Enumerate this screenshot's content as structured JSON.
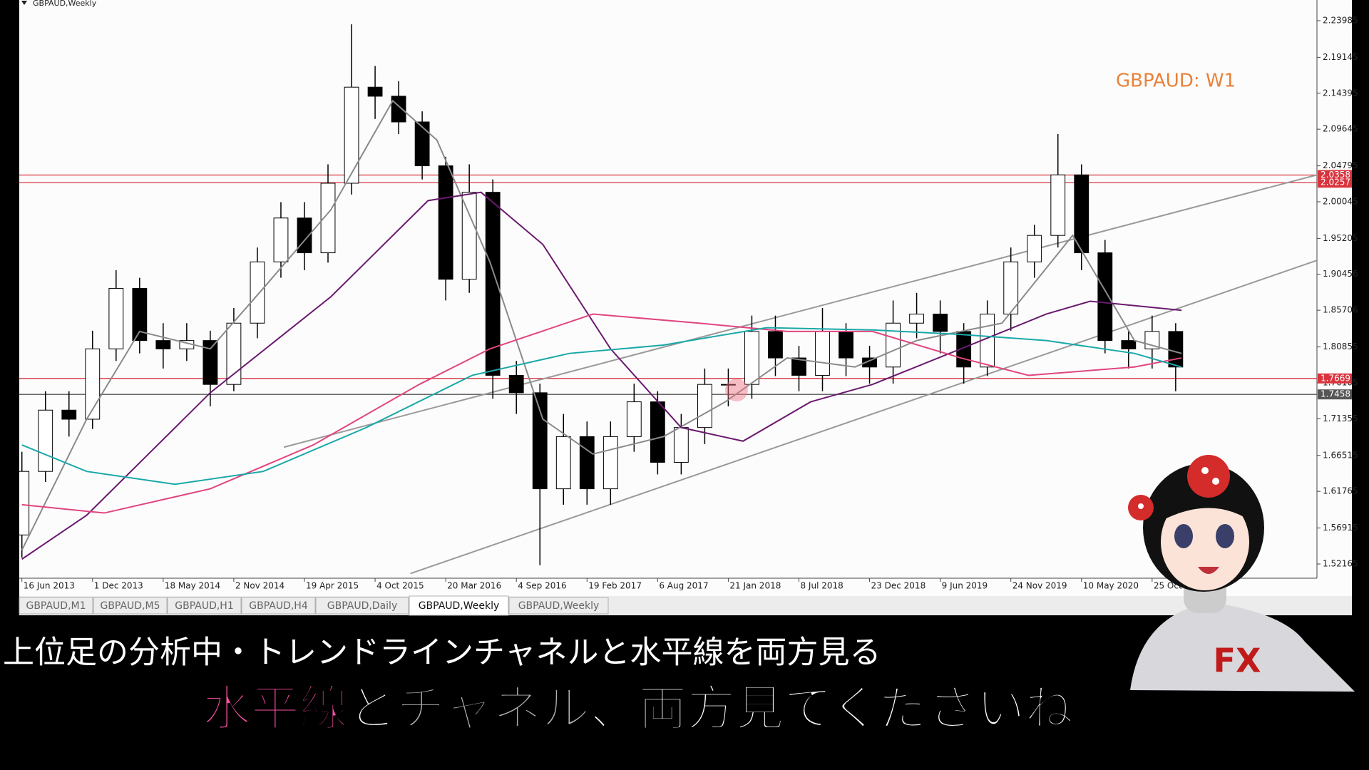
{
  "window_title": "GBPAUD,Weekly",
  "chart_data": {
    "type": "candlestick",
    "title": "GBPAUD: W1",
    "xlim": [
      -0.9,
      440
    ],
    "xticks": [
      {
        "value": 0,
        "label": "16 Jun 2013"
      },
      {
        "value": 24,
        "label": "1 Dec 2013"
      },
      {
        "value": 48,
        "label": "18 May 2014"
      },
      {
        "value": 72,
        "label": "2 Nov 2014"
      },
      {
        "value": 96,
        "label": "19 Apr 2015"
      },
      {
        "value": 120,
        "label": "4 Oct 2015"
      },
      {
        "value": 144,
        "label": "20 Mar 2016"
      },
      {
        "value": 168,
        "label": "4 Sep 2016"
      },
      {
        "value": 192,
        "label": "19 Feb 2017"
      },
      {
        "value": 216,
        "label": "6 Aug 2017"
      },
      {
        "value": 240,
        "label": "21 Jan 2018"
      },
      {
        "value": 264,
        "label": "8 Jul 2018"
      },
      {
        "value": 288,
        "label": "23 Dec 2018"
      },
      {
        "value": 312,
        "label": "9 Jun 2019"
      },
      {
        "value": 336,
        "label": "24 Nov 2019"
      },
      {
        "value": 360,
        "label": "10 May 2020"
      },
      {
        "value": 384,
        "label": "25 Oct 2020"
      }
    ],
    "ylim": [
      1.5028,
      2.2672
    ],
    "yticks": [
      2.23985,
      2.19145,
      2.14395,
      2.09645,
      2.04795,
      2.00045,
      1.95205,
      1.90456,
      1.85706,
      1.80855,
      1.76105,
      1.71355,
      1.66515,
      1.61765,
      1.56915,
      1.52165
    ],
    "candles": {
      "up_color": "#ffffff",
      "down_color": "#000000",
      "x": [
        0,
        8,
        16,
        24,
        32,
        40,
        48,
        56,
        64,
        72,
        80,
        88,
        96,
        104,
        112,
        120,
        128,
        136,
        144,
        152,
        160,
        168,
        176,
        184,
        192,
        200,
        208,
        216,
        224,
        232,
        240,
        248,
        256,
        264,
        272,
        280,
        288,
        296,
        304,
        312,
        320,
        328,
        336,
        344,
        352,
        360,
        368,
        376,
        384,
        392
      ],
      "open": [
        1.56,
        1.644,
        1.725,
        1.713,
        1.806,
        1.886,
        1.817,
        1.806,
        1.817,
        1.759,
        1.84,
        1.921,
        1.979,
        1.933,
        2.025,
        2.152,
        2.14,
        2.106,
        2.048,
        1.898,
        2.013,
        1.771,
        1.748,
        1.621,
        1.69,
        1.621,
        1.69,
        1.736,
        1.656,
        1.702,
        1.759,
        1.759,
        1.829,
        1.794,
        1.771,
        1.829,
        1.794,
        1.782,
        1.84,
        1.852,
        1.829,
        1.782,
        1.852,
        1.921,
        1.956,
        2.036,
        1.933,
        1.817,
        1.806,
        1.829
      ],
      "high": [
        1.67,
        1.75,
        1.75,
        1.83,
        1.91,
        1.9,
        1.84,
        1.84,
        1.83,
        1.86,
        1.94,
        2.0,
        2.0,
        2.05,
        2.235,
        2.18,
        2.16,
        2.12,
        2.06,
        2.05,
        2.03,
        1.79,
        1.76,
        1.72,
        1.71,
        1.71,
        1.76,
        1.75,
        1.72,
        1.78,
        1.78,
        1.85,
        1.85,
        1.81,
        1.86,
        1.84,
        1.81,
        1.87,
        1.88,
        1.87,
        1.84,
        1.87,
        1.94,
        1.97,
        2.09,
        2.05,
        1.95,
        1.83,
        1.85,
        1.84
      ],
      "low": [
        1.53,
        1.63,
        1.69,
        1.7,
        1.79,
        1.8,
        1.78,
        1.79,
        1.73,
        1.75,
        1.82,
        1.9,
        1.91,
        1.92,
        2.01,
        2.11,
        2.09,
        2.03,
        1.87,
        1.88,
        1.74,
        1.72,
        1.52,
        1.6,
        1.6,
        1.6,
        1.67,
        1.64,
        1.64,
        1.68,
        1.73,
        1.74,
        1.77,
        1.75,
        1.75,
        1.77,
        1.76,
        1.76,
        1.82,
        1.8,
        1.76,
        1.77,
        1.83,
        1.9,
        1.94,
        1.91,
        1.8,
        1.78,
        1.78,
        1.75
      ],
      "close": [
        1.644,
        1.725,
        1.713,
        1.806,
        1.886,
        1.817,
        1.806,
        1.817,
        1.759,
        1.84,
        1.921,
        1.979,
        1.933,
        2.025,
        2.152,
        2.14,
        2.106,
        2.048,
        1.898,
        2.013,
        1.771,
        1.748,
        1.621,
        1.69,
        1.621,
        1.69,
        1.736,
        1.656,
        1.702,
        1.759,
        1.759,
        1.829,
        1.794,
        1.771,
        1.829,
        1.794,
        1.782,
        1.84,
        1.852,
        1.829,
        1.782,
        1.852,
        1.921,
        1.956,
        2.036,
        1.933,
        1.817,
        1.806,
        1.829,
        1.782
      ]
    },
    "series": [
      {
        "color": "#8a8a8a",
        "x": [
          0,
          22,
          40,
          64,
          82,
          105,
          126,
          141,
          159,
          177,
          194,
          218,
          239,
          260,
          283,
          304,
          319,
          333,
          357,
          378,
          394
        ],
        "values": [
          1.54,
          1.713,
          1.829,
          1.806,
          1.886,
          1.99,
          2.134,
          2.082,
          1.921,
          1.713,
          1.667,
          1.69,
          1.736,
          1.794,
          1.782,
          1.817,
          1.829,
          1.84,
          1.956,
          1.817,
          1.8
        ]
      },
      {
        "color": "#6a1a6e",
        "x": [
          0,
          22,
          64,
          105,
          138,
          156,
          177,
          200,
          224,
          245,
          268,
          289,
          319,
          348,
          363,
          394
        ],
        "values": [
          1.528,
          1.586,
          1.748,
          1.875,
          2.002,
          2.013,
          1.944,
          1.806,
          1.702,
          1.684,
          1.736,
          1.759,
          1.806,
          1.852,
          1.869,
          1.857
        ]
      },
      {
        "color": "#e0457f",
        "x": [
          0,
          28,
          64,
          99,
          135,
          159,
          194,
          230,
          260,
          289,
          319,
          342,
          378,
          394
        ],
        "values": [
          1.6,
          1.589,
          1.621,
          1.679,
          1.759,
          1.806,
          1.852,
          1.84,
          1.829,
          1.829,
          1.794,
          1.771,
          1.782,
          1.794
        ]
      },
      {
        "color": "#1aa8a8",
        "x": [
          0,
          22,
          52,
          82,
          117,
          153,
          186,
          218,
          253,
          289,
          319,
          348,
          378,
          394
        ],
        "values": [
          1.679,
          1.644,
          1.627,
          1.644,
          1.702,
          1.771,
          1.8,
          1.811,
          1.834,
          1.831,
          1.825,
          1.817,
          1.8,
          1.782
        ]
      }
    ],
    "trendlines": [
      {
        "color": "#9a9a9a",
        "x": [
          132,
          440
        ],
        "values": [
          1.509,
          1.923
        ]
      },
      {
        "color": "#9a9a9a",
        "x": [
          89,
          440
        ],
        "values": [
          1.676,
          2.036
        ]
      }
    ],
    "hlines": [
      {
        "value": 2.0358,
        "color": "#d9343e"
      },
      {
        "value": 2.0257,
        "color": "#d9343e"
      },
      {
        "value": 1.7669,
        "color": "#d9343e"
      },
      {
        "value": 1.7458,
        "color": "#555555"
      }
    ]
  },
  "tabs": [
    "GBPAUD,M1",
    "GBPAUD,M5",
    "GBPAUD,H1",
    "GBPAUD,H4",
    "GBPAUD,Daily",
    "GBPAUD,Weekly",
    "GBPAUD,Weekly"
  ],
  "active_tab": 5,
  "subtitle_top": "上位足の分析中・トレンドラインチャネルと水平線を両方見る",
  "caption": [
    {
      "text": "水平線",
      "color": "#ff4fa5"
    },
    {
      "text": "と",
      "color": "#ffffff"
    },
    {
      "text": "チャネル",
      "color": "#b4b4b4"
    },
    {
      "text": "、両方見てくださいね",
      "color": "#ffffff"
    }
  ],
  "shirt_text": "FX"
}
